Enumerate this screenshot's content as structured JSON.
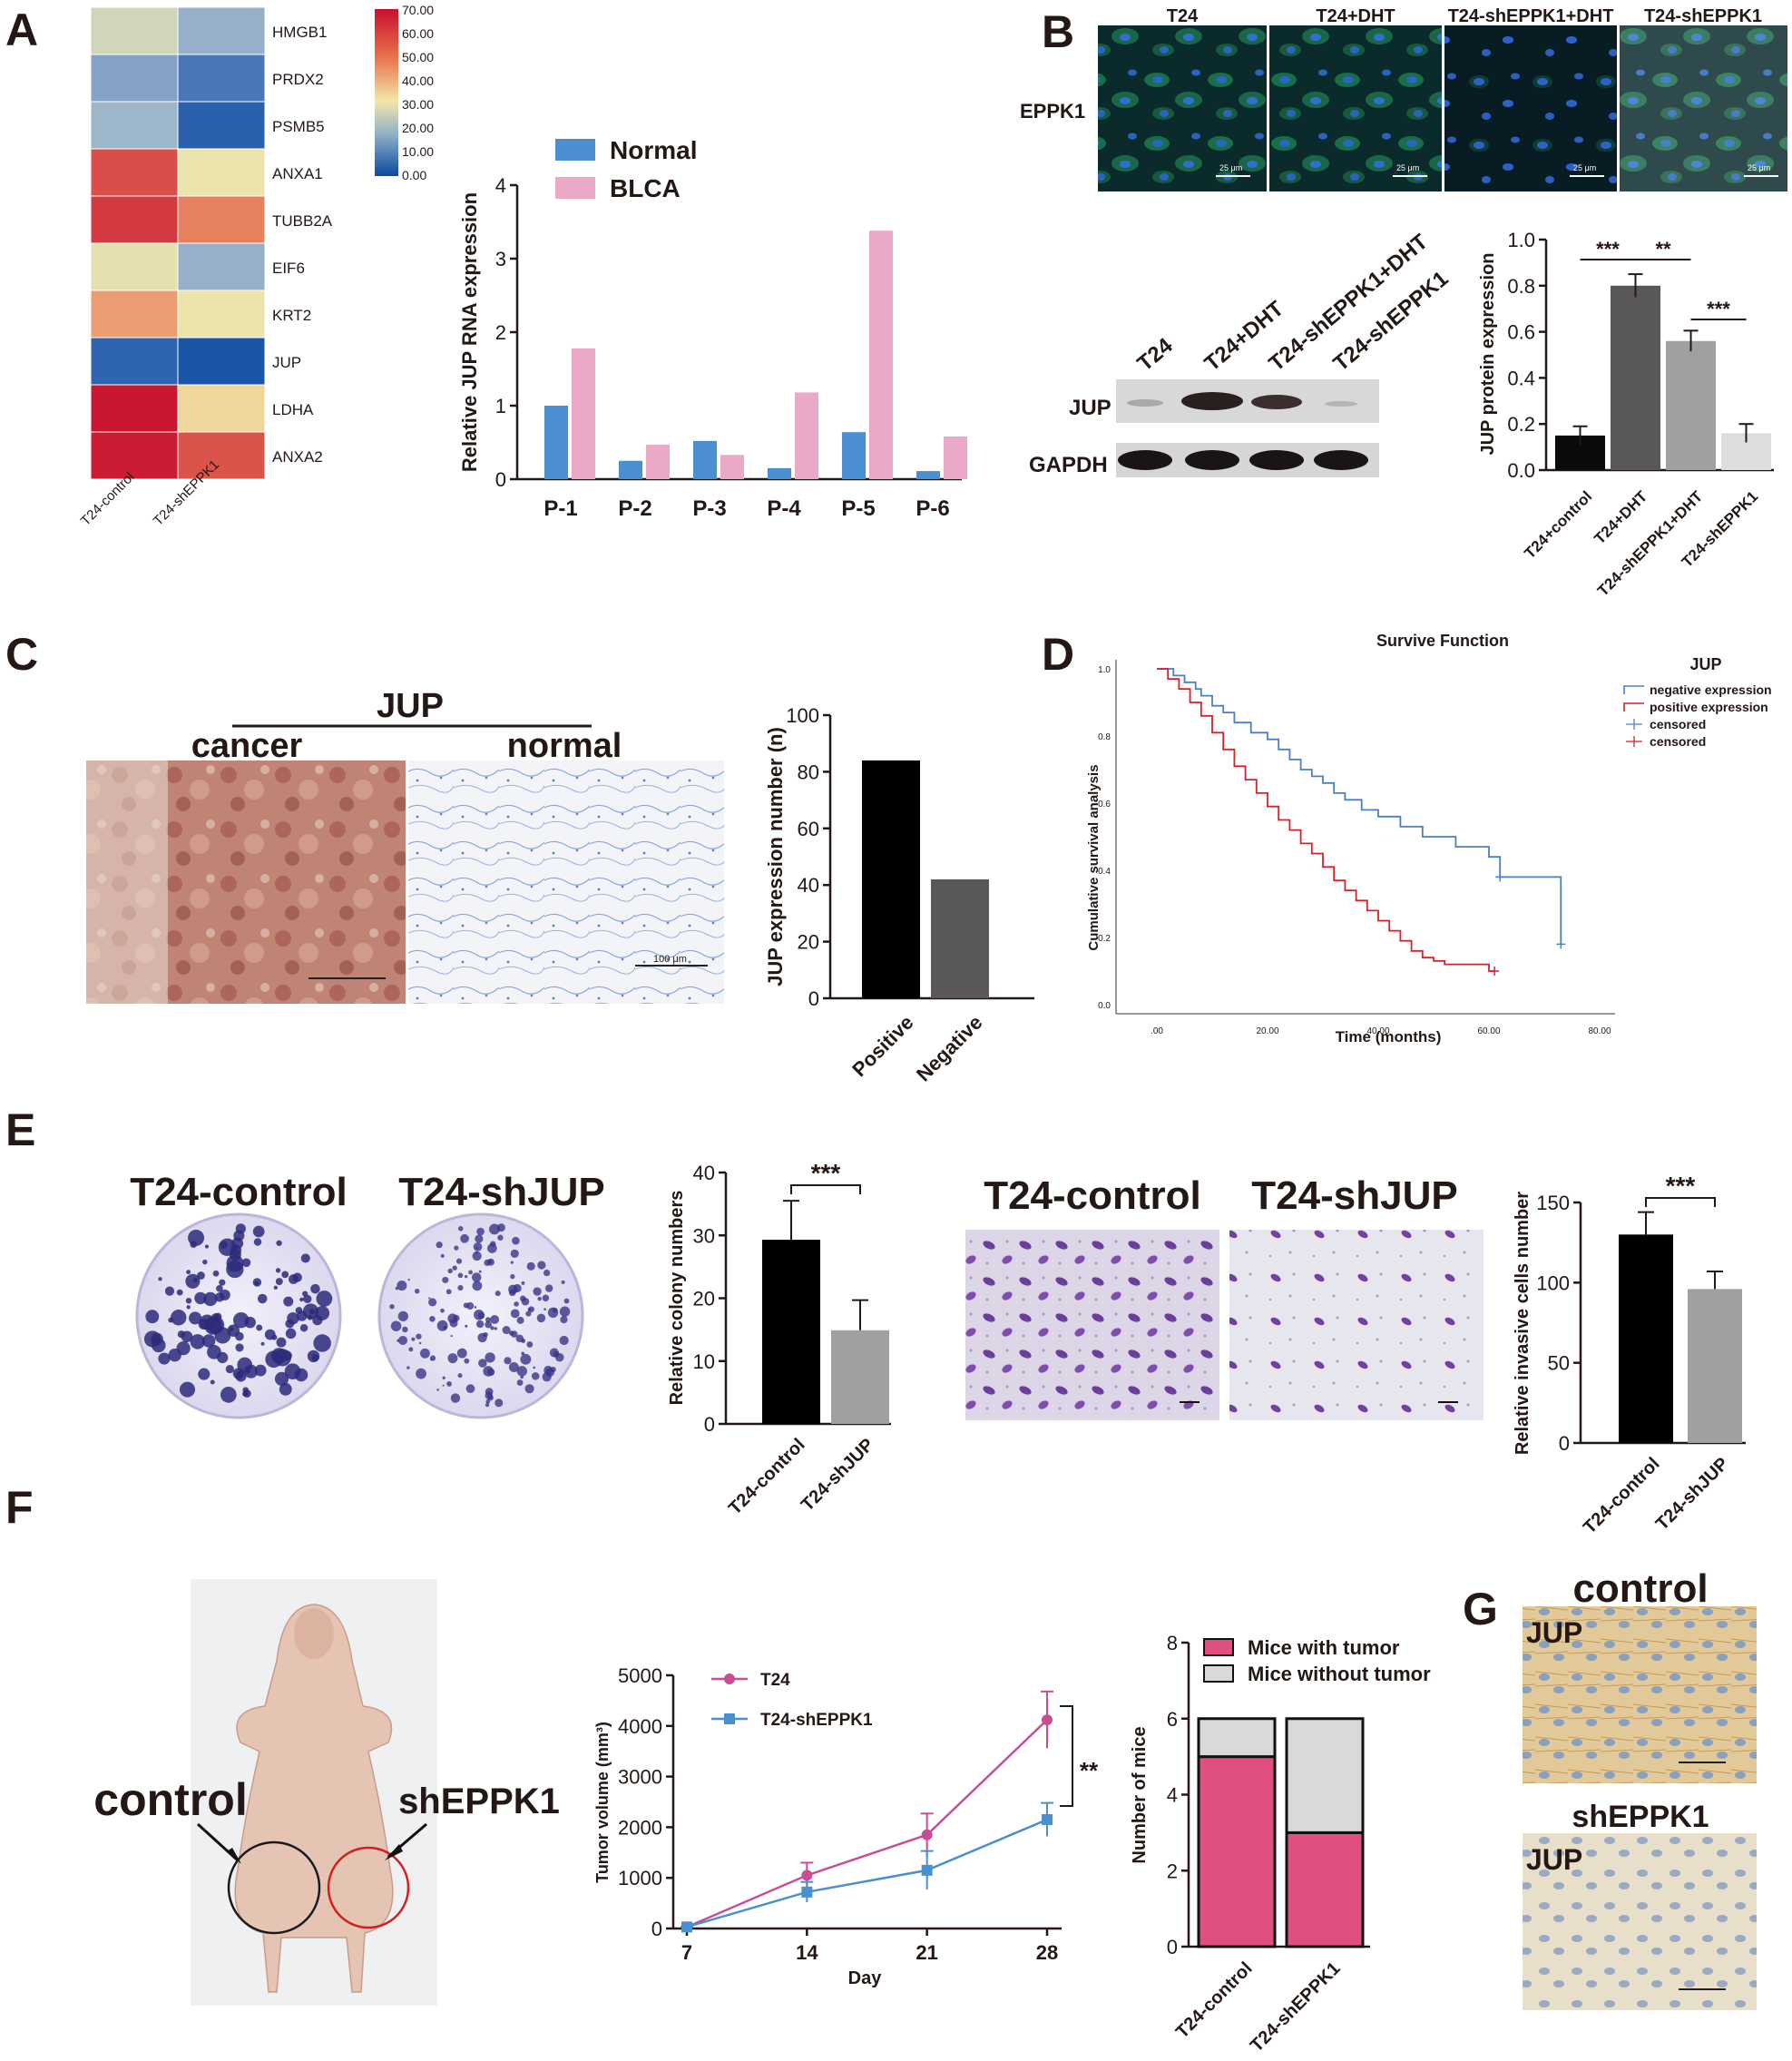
{
  "panel_labels": [
    "A",
    "B",
    "C",
    "D",
    "E",
    "F",
    "G"
  ],
  "heatmap": {
    "genes": [
      "HMGB1",
      "PRDX2",
      "PSMB5",
      "ANXA1",
      "TUBB2A",
      "EIF6",
      "KRT2",
      "JUP",
      "LDHA",
      "ANXA2"
    ],
    "columns": [
      "T24-control",
      "T24-shEPPK1"
    ],
    "values": [
      [
        30,
        22
      ],
      [
        20,
        12
      ],
      [
        23,
        6
      ],
      [
        60,
        34
      ],
      [
        63,
        52
      ],
      [
        33,
        22
      ],
      [
        47,
        34
      ],
      [
        7,
        3
      ],
      [
        69,
        38
      ],
      [
        68,
        59
      ]
    ],
    "colorbar_ticks": [
      "70.00",
      "60.00",
      "50.00",
      "40.00",
      "30.00",
      "20.00",
      "10.00",
      "0.00"
    ],
    "colors": {
      "high": "#c8102e",
      "mid": "#f2e8a8",
      "low": "#0a4aa0"
    }
  },
  "panel_b": {
    "if_titles": [
      "T24",
      "T24+DHT",
      "T24-shEPPK1+DHT",
      "T24-shEPPK1"
    ],
    "if_marker": "EPPK1",
    "scale_text": "25 μm",
    "blot_lanes": [
      "T24",
      "T24+DHT",
      "T24-shEPPK1+DHT",
      "T24-shEPPK1"
    ],
    "blot_rows": [
      "JUP",
      "GAPDH"
    ],
    "sig": [
      "***",
      "**",
      "***"
    ]
  },
  "panel_c": {
    "ihc_title": "JUP",
    "ihc_labels": [
      "cancer",
      "normal"
    ],
    "scale_text": "100 μm"
  },
  "panel_e": {
    "colony_labels": [
      "T24-control",
      "T24-shJUP"
    ],
    "transwell_labels": [
      "T24-control",
      "T24-shJUP"
    ],
    "sig": "***"
  },
  "panel_f": {
    "mouse_labels": [
      "control",
      "shEPPK1"
    ],
    "sig": "**"
  },
  "panel_g": {
    "labels": [
      "control",
      "shEPPK1"
    ],
    "marker": "JUP"
  },
  "chart_data": [
    {
      "id": "jup_rna",
      "type": "bar",
      "categories": [
        "P-1",
        "P-2",
        "P-3",
        "P-4",
        "P-5",
        "P-6"
      ],
      "series": [
        {
          "name": "Normal",
          "values": [
            1.0,
            0.25,
            0.52,
            0.15,
            0.64,
            0.11
          ],
          "color": "#4c8fd0"
        },
        {
          "name": "BLCA",
          "values": [
            1.78,
            0.47,
            0.33,
            1.18,
            3.38,
            0.58
          ],
          "color": "#e9a9c7"
        }
      ],
      "xlabel": "",
      "ylabel": "Relative JUP RNA expression",
      "ylim": [
        0,
        4
      ],
      "yticks": [
        "0",
        "1",
        "2",
        "3",
        "4"
      ],
      "legend": "top"
    },
    {
      "id": "jup_protein",
      "type": "bar",
      "categories": [
        "T24+control",
        "T24+DHT",
        "T24-shEPPK1+DHT",
        "T24-shEPPK1"
      ],
      "values": [
        0.15,
        0.8,
        0.56,
        0.16
      ],
      "errors": [
        0.04,
        0.05,
        0.045,
        0.04
      ],
      "colors": [
        "#0a0a0a",
        "#595757",
        "#9fa0a0",
        "#dcdddd"
      ],
      "ylabel": "JUP protein expression",
      "ylim": [
        0,
        1.0
      ],
      "yticks": [
        "0.0",
        "0.2",
        "0.4",
        "0.6",
        "0.8",
        "1.0"
      ]
    },
    {
      "id": "jup_ihc_count",
      "type": "bar",
      "categories": [
        "Positive",
        "Negative"
      ],
      "values": [
        84,
        42
      ],
      "colors": [
        "#000000",
        "#595757"
      ],
      "ylabel": "JUP expression number (n)",
      "ylim": [
        0,
        100
      ],
      "yticks": [
        "0",
        "20",
        "40",
        "60",
        "80",
        "100"
      ]
    },
    {
      "id": "survival",
      "type": "line",
      "title": "Survive Function",
      "xlabel": "Time (months)",
      "ylabel": "Cumulative survival analysis",
      "xlim": [
        0,
        80
      ],
      "ylim": [
        0,
        1.0
      ],
      "xticks": [
        ".00",
        "20.00",
        "40.00",
        "60.00",
        "80.00"
      ],
      "yticks": [
        "0.0",
        "0.2",
        "0.4",
        "0.6",
        "0.8",
        "1.0"
      ],
      "legend_title": "JUP",
      "legend": [
        "negative expression",
        "positive expression",
        "censored",
        "censored"
      ],
      "series": [
        {
          "name": "negative expression",
          "color": "#4a7fc1",
          "points": [
            [
              0,
              1.0
            ],
            [
              3,
              0.98
            ],
            [
              5,
              0.96
            ],
            [
              7,
              0.94
            ],
            [
              8,
              0.92
            ],
            [
              10,
              0.89
            ],
            [
              12,
              0.87
            ],
            [
              14,
              0.84
            ],
            [
              17,
              0.81
            ],
            [
              20,
              0.79
            ],
            [
              22,
              0.76
            ],
            [
              24,
              0.73
            ],
            [
              26,
              0.7
            ],
            [
              28,
              0.68
            ],
            [
              30,
              0.66
            ],
            [
              32,
              0.63
            ],
            [
              34,
              0.61
            ],
            [
              37,
              0.58
            ],
            [
              40,
              0.56
            ],
            [
              44,
              0.53
            ],
            [
              48,
              0.5
            ],
            [
              54,
              0.47
            ],
            [
              60,
              0.44
            ],
            [
              62,
              0.38
            ],
            [
              71,
              0.38
            ],
            [
              73,
              0.18
            ]
          ]
        },
        {
          "name": "positive expression",
          "color": "#d9212b",
          "points": [
            [
              0,
              1.0
            ],
            [
              2,
              0.97
            ],
            [
              4,
              0.94
            ],
            [
              6,
              0.9
            ],
            [
              8,
              0.86
            ],
            [
              10,
              0.81
            ],
            [
              12,
              0.76
            ],
            [
              14,
              0.71
            ],
            [
              16,
              0.67
            ],
            [
              18,
              0.63
            ],
            [
              20,
              0.59
            ],
            [
              22,
              0.55
            ],
            [
              24,
              0.52
            ],
            [
              26,
              0.48
            ],
            [
              28,
              0.45
            ],
            [
              30,
              0.41
            ],
            [
              32,
              0.37
            ],
            [
              34,
              0.34
            ],
            [
              36,
              0.31
            ],
            [
              38,
              0.28
            ],
            [
              40,
              0.25
            ],
            [
              42,
              0.22
            ],
            [
              44,
              0.19
            ],
            [
              46,
              0.16
            ],
            [
              48,
              0.14
            ],
            [
              50,
              0.13
            ],
            [
              52,
              0.12
            ],
            [
              58,
              0.12
            ],
            [
              60,
              0.1
            ],
            [
              61,
              0.1
            ]
          ]
        }
      ]
    },
    {
      "id": "colony",
      "type": "bar",
      "categories": [
        "T24-control",
        "T24-shJUP"
      ],
      "values": [
        29.3,
        14.9
      ],
      "errors": [
        6.2,
        4.8
      ],
      "colors": [
        "#000000",
        "#a0a0a0"
      ],
      "ylabel": "Relative colony numbers",
      "ylim": [
        0,
        40
      ],
      "yticks": [
        "0",
        "10",
        "20",
        "30",
        "40"
      ]
    },
    {
      "id": "invasion",
      "type": "bar",
      "categories": [
        "T24-control",
        "T24-shJUP"
      ],
      "values": [
        130,
        96
      ],
      "errors": [
        14,
        11
      ],
      "colors": [
        "#000000",
        "#a0a0a0"
      ],
      "ylabel": "Relative invasive cells number",
      "ylim": [
        0,
        150
      ],
      "yticks": [
        "0",
        "50",
        "100",
        "150"
      ]
    },
    {
      "id": "tumor_volume",
      "type": "line",
      "xlabel": "Day",
      "ylabel": "Tumor volume (mm³)",
      "x": [
        7,
        14,
        21,
        28
      ],
      "xlim": [
        7,
        28
      ],
      "ylim": [
        0,
        5000
      ],
      "yticks": [
        "0",
        "1000",
        "2000",
        "3000",
        "4000",
        "5000"
      ],
      "series": [
        {
          "name": "T24",
          "values": [
            30,
            1050,
            1850,
            4120
          ],
          "errors": [
            10,
            250,
            420,
            560
          ],
          "color": "#c94d93"
        },
        {
          "name": "T24-shEPPK1",
          "values": [
            30,
            720,
            1150,
            2150
          ],
          "errors": [
            10,
            200,
            380,
            330
          ],
          "color": "#4a8fcf"
        }
      ]
    },
    {
      "id": "mice",
      "type": "bar",
      "stacked": true,
      "categories": [
        "T24-control",
        "T24-shEPPK1"
      ],
      "series": [
        {
          "name": "Mice with tumor",
          "values": [
            5,
            3
          ],
          "color": "#e04f80"
        },
        {
          "name": "Mice without tumor",
          "values": [
            1,
            3
          ],
          "color": "#d9d9d9"
        }
      ],
      "ylabel": "Number of mice",
      "ylim": [
        0,
        8
      ],
      "yticks": [
        "0",
        "2",
        "4",
        "6",
        "8"
      ]
    }
  ]
}
